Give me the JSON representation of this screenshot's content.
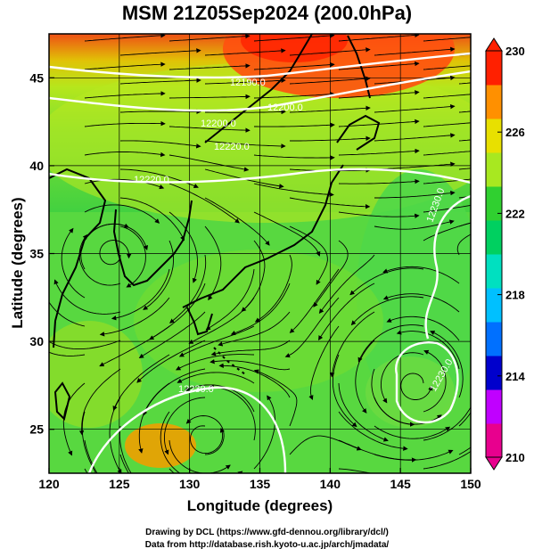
{
  "map": {
    "title": "MSM 21Z05Sep2024 (200.0hPa)",
    "xlabel": "Longitude (degrees)",
    "ylabel": "Latitude  (degrees)",
    "lon_range": [
      120,
      150
    ],
    "lat_range": [
      22.5,
      47.5
    ],
    "lon_ticks": [
      "120",
      "125",
      "130",
      "135",
      "140",
      "145",
      "150"
    ],
    "lat_ticks": [
      "25",
      "30",
      "35",
      "40",
      "45"
    ],
    "grid": true,
    "colorbar": {
      "ticks": [
        "230",
        "226",
        "222",
        "218",
        "214",
        "210"
      ],
      "range": [
        210,
        230
      ],
      "colors": [
        "#e8008e",
        "#c000ff",
        "#0000cc",
        "#0070ff",
        "#00c0ff",
        "#00e0c0",
        "#00d060",
        "#30d030",
        "#a8e820",
        "#e8e000",
        "#ff9000",
        "#ff2000"
      ]
    },
    "contour_labels": [
      "12190.0",
      "12200.0",
      "12220.0",
      "12230.0"
    ],
    "centers": [
      {
        "type": "cyclonic",
        "lon": 124.5,
        "lat": 35.0
      },
      {
        "type": "anticyclonic",
        "lon": 146.0,
        "lat": 27.5
      },
      {
        "type": "anticyclonic",
        "lon": 131.0,
        "lat": 24.5
      }
    ]
  },
  "credits": {
    "line1": "Drawing by DCL (https://www.gfd-dennou.org/library/dcl/)",
    "line2": "Data from http://database.rish.kyoto-u.ac.jp/arch/jmadata/"
  }
}
